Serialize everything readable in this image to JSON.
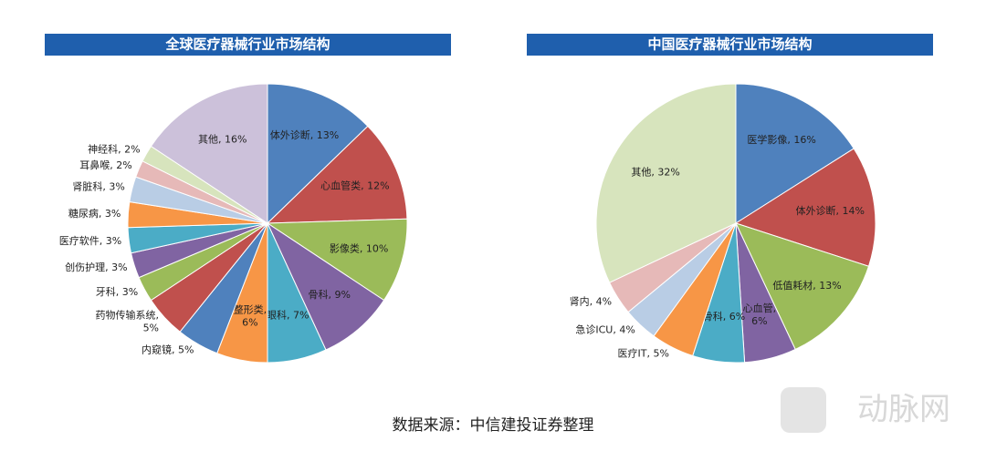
{
  "chart_data": [
    {
      "type": "pie",
      "title": "全球医疗器械行业市场结构",
      "categories": [
        "体外诊断, 13%",
        "心血管类, 12%",
        "影像类, 10%",
        "骨科, 9%",
        "眼科, 7%",
        "整形类,\n6%",
        "内窥镜, 5%",
        "药物传输系统,\n5%",
        "牙科, 3%",
        "创伤护理, 3%",
        "医疗软件, 3%",
        "糖尿病, 3%",
        "肾脏科, 3%",
        "耳鼻喉, 2%",
        "神经科, 2%",
        "其他, 16%"
      ],
      "values": [
        13,
        12,
        10,
        9,
        7,
        6,
        5,
        5,
        3,
        3,
        3,
        3,
        3,
        2,
        2,
        16
      ],
      "colors": [
        "#4f81bd",
        "#c0504d",
        "#9bbb59",
        "#8064a2",
        "#4bacc6",
        "#f79646",
        "#4f81bd",
        "#c0504d",
        "#9bbb59",
        "#8064a2",
        "#4bacc6",
        "#f79646",
        "#b9cde5",
        "#e6b9b8",
        "#d7e4bd",
        "#ccc1da"
      ]
    },
    {
      "type": "pie",
      "title": "中国医疗器械行业市场结构",
      "categories": [
        "医学影像, 16%",
        "体外诊断, 14%",
        "低值耗材, 13%",
        "心血管,\n6%",
        "骨科, 6%",
        "医疗IT, 5%",
        "急诊ICU, 4%",
        "肾内, 4%",
        "其他, 32%"
      ],
      "values": [
        16,
        14,
        13,
        6,
        6,
        5,
        4,
        4,
        32
      ],
      "colors": [
        "#4f81bd",
        "#c0504d",
        "#9bbb59",
        "#8064a2",
        "#4bacc6",
        "#f79646",
        "#b9cde5",
        "#e6b9b8",
        "#d7e4bd"
      ]
    }
  ],
  "source": "数据来源：中信建投证券整理",
  "watermark": "动脉网"
}
